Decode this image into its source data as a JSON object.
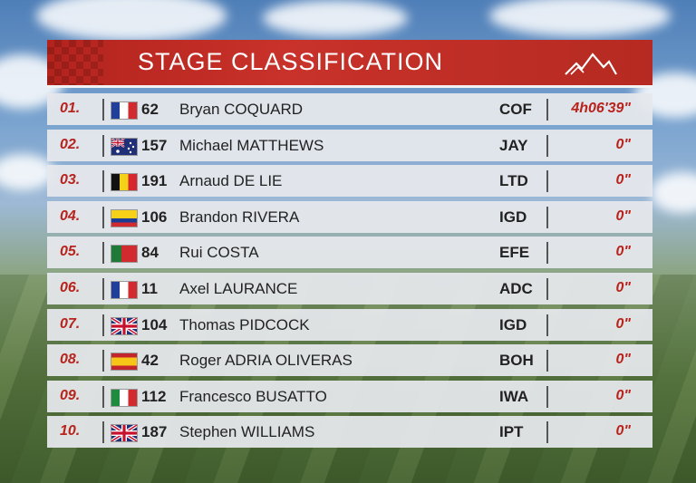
{
  "header": {
    "title": "STAGE CLASSIFICATION"
  },
  "colors": {
    "header_red": "#c8322a",
    "accent_red": "#b8231c",
    "row_bg": "#e6e8ec"
  },
  "rows": [
    {
      "pos": "01.",
      "flag": "flag-fr",
      "num": "62",
      "name": "Bryan COQUARD",
      "team": "COF",
      "time": "4h06'39\""
    },
    {
      "pos": "02.",
      "flag": "flag-au",
      "num": "157",
      "name": "Michael MATTHEWS",
      "team": "JAY",
      "time": "0\""
    },
    {
      "pos": "03.",
      "flag": "flag-be",
      "num": "191",
      "name": "Arnaud DE LIE",
      "team": "LTD",
      "time": "0\""
    },
    {
      "pos": "04.",
      "flag": "flag-co",
      "num": "106",
      "name": "Brandon RIVERA",
      "team": "IGD",
      "time": "0\""
    },
    {
      "pos": "05.",
      "flag": "flag-pt",
      "num": "84",
      "name": "Rui COSTA",
      "team": "EFE",
      "time": "0\""
    },
    {
      "pos": "06.",
      "flag": "flag-fr",
      "num": "11",
      "name": "Axel LAURANCE",
      "team": "ADC",
      "time": "0\""
    },
    {
      "pos": "07.",
      "flag": "flag-gb",
      "num": "104",
      "name": "Thomas PIDCOCK",
      "team": "IGD",
      "time": "0\""
    },
    {
      "pos": "08.",
      "flag": "flag-es",
      "num": "42",
      "name": "Roger ADRIA OLIVERAS",
      "team": "BOH",
      "time": "0\""
    },
    {
      "pos": "09.",
      "flag": "flag-it",
      "num": "112",
      "name": "Francesco BUSATTO",
      "team": "IWA",
      "time": "0\""
    },
    {
      "pos": "10.",
      "flag": "flag-gb",
      "num": "187",
      "name": "Stephen WILLIAMS",
      "team": "IPT",
      "time": "0\""
    }
  ]
}
